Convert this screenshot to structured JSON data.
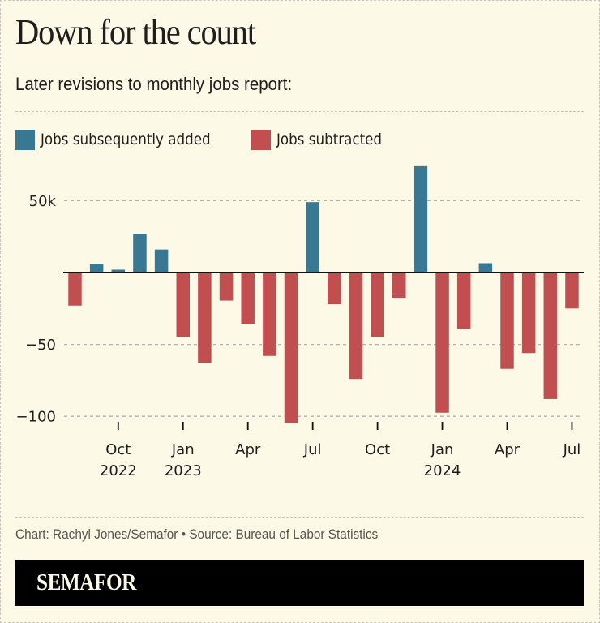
{
  "header": {
    "title": "Down for the count",
    "subtitle": "Later revisions to monthly jobs report:"
  },
  "legend": [
    {
      "label": "Jobs subsequently added",
      "color": "#387892"
    },
    {
      "label": "Jobs subtracted",
      "color": "#c14f50"
    }
  ],
  "footer": {
    "credit": "Chart: Rachyl Jones/Semafor • Source: Bureau of Labor Statistics",
    "brand": "SEMAFOR"
  },
  "chart_data": {
    "type": "bar",
    "title": "Down for the count",
    "subtitle": "Later revisions to monthly jobs report:",
    "xlabel": "",
    "ylabel": "",
    "ylim": [
      -105,
      75
    ],
    "units": "thousands of jobs",
    "grid": true,
    "legend_position": "top-left",
    "categories": [
      "Aug 2022",
      "Sep 2022",
      "Oct 2022",
      "Nov 2022",
      "Dec 2022",
      "Jan 2023",
      "Feb 2023",
      "Mar 2023",
      "Apr 2023",
      "May 2023",
      "Jun 2023",
      "Jul 2023",
      "Aug 2023",
      "Sep 2023",
      "Oct 2023",
      "Nov 2023",
      "Dec 2023",
      "Jan 2024",
      "Feb 2024",
      "Mar 2024",
      "Apr 2024",
      "May 2024",
      "Jun 2024",
      "Jul 2024"
    ],
    "values": [
      -23,
      6,
      2,
      27,
      16,
      -45,
      -63,
      -19.5,
      -36,
      -58,
      -104.5,
      49,
      -22,
      -74,
      -45,
      -17.5,
      74,
      -97.5,
      -39,
      6.5,
      -67,
      -56,
      -88,
      -25
    ],
    "positive_color": "#387892",
    "negative_color": "#c14f50",
    "y_ticks": [
      {
        "value": 50,
        "label": "50k"
      },
      {
        "value": -50,
        "label": "−50"
      },
      {
        "value": -100,
        "label": "−100"
      }
    ],
    "x_ticks": [
      {
        "index": 2,
        "label": "Oct",
        "sublabel": "2022"
      },
      {
        "index": 5,
        "label": "Jan",
        "sublabel": "2023"
      },
      {
        "index": 8,
        "label": "Apr",
        "sublabel": ""
      },
      {
        "index": 11,
        "label": "Jul",
        "sublabel": ""
      },
      {
        "index": 14,
        "label": "Oct",
        "sublabel": ""
      },
      {
        "index": 17,
        "label": "Jan",
        "sublabel": "2024"
      },
      {
        "index": 20,
        "label": "Apr",
        "sublabel": ""
      },
      {
        "index": 23,
        "label": "Jul",
        "sublabel": ""
      }
    ]
  }
}
